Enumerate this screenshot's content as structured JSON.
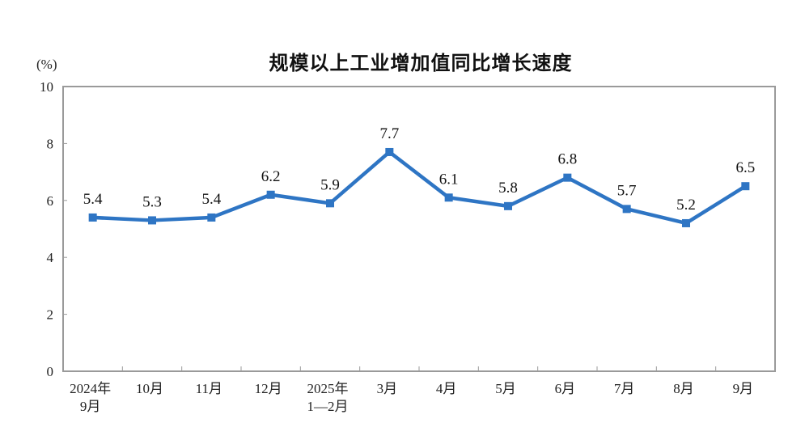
{
  "chart_data": {
    "type": "line",
    "title": "规模以上工业增加值同比增长速度",
    "ylabel": "(%)",
    "xlabel": "",
    "ylim": [
      0,
      10
    ],
    "yticks": [
      0,
      2,
      4,
      6,
      8,
      10
    ],
    "grid": false,
    "legend": null,
    "categories": [
      "2024年\n9月",
      "10月",
      "11月",
      "12月",
      "2025年\n1—2月",
      "3月",
      "4月",
      "5月",
      "6月",
      "7月",
      "8月",
      "9月"
    ],
    "series": [
      {
        "name": "规模以上工业增加值同比增长速度",
        "color": "#2e75c4",
        "marker": "square",
        "values": [
          5.4,
          5.3,
          5.4,
          6.2,
          5.9,
          7.7,
          6.1,
          5.8,
          6.8,
          5.7,
          5.2,
          6.5
        ]
      }
    ]
  },
  "colors": {
    "line": "#2e75c4",
    "axis": "#9a9a9a",
    "text": "#222222"
  }
}
